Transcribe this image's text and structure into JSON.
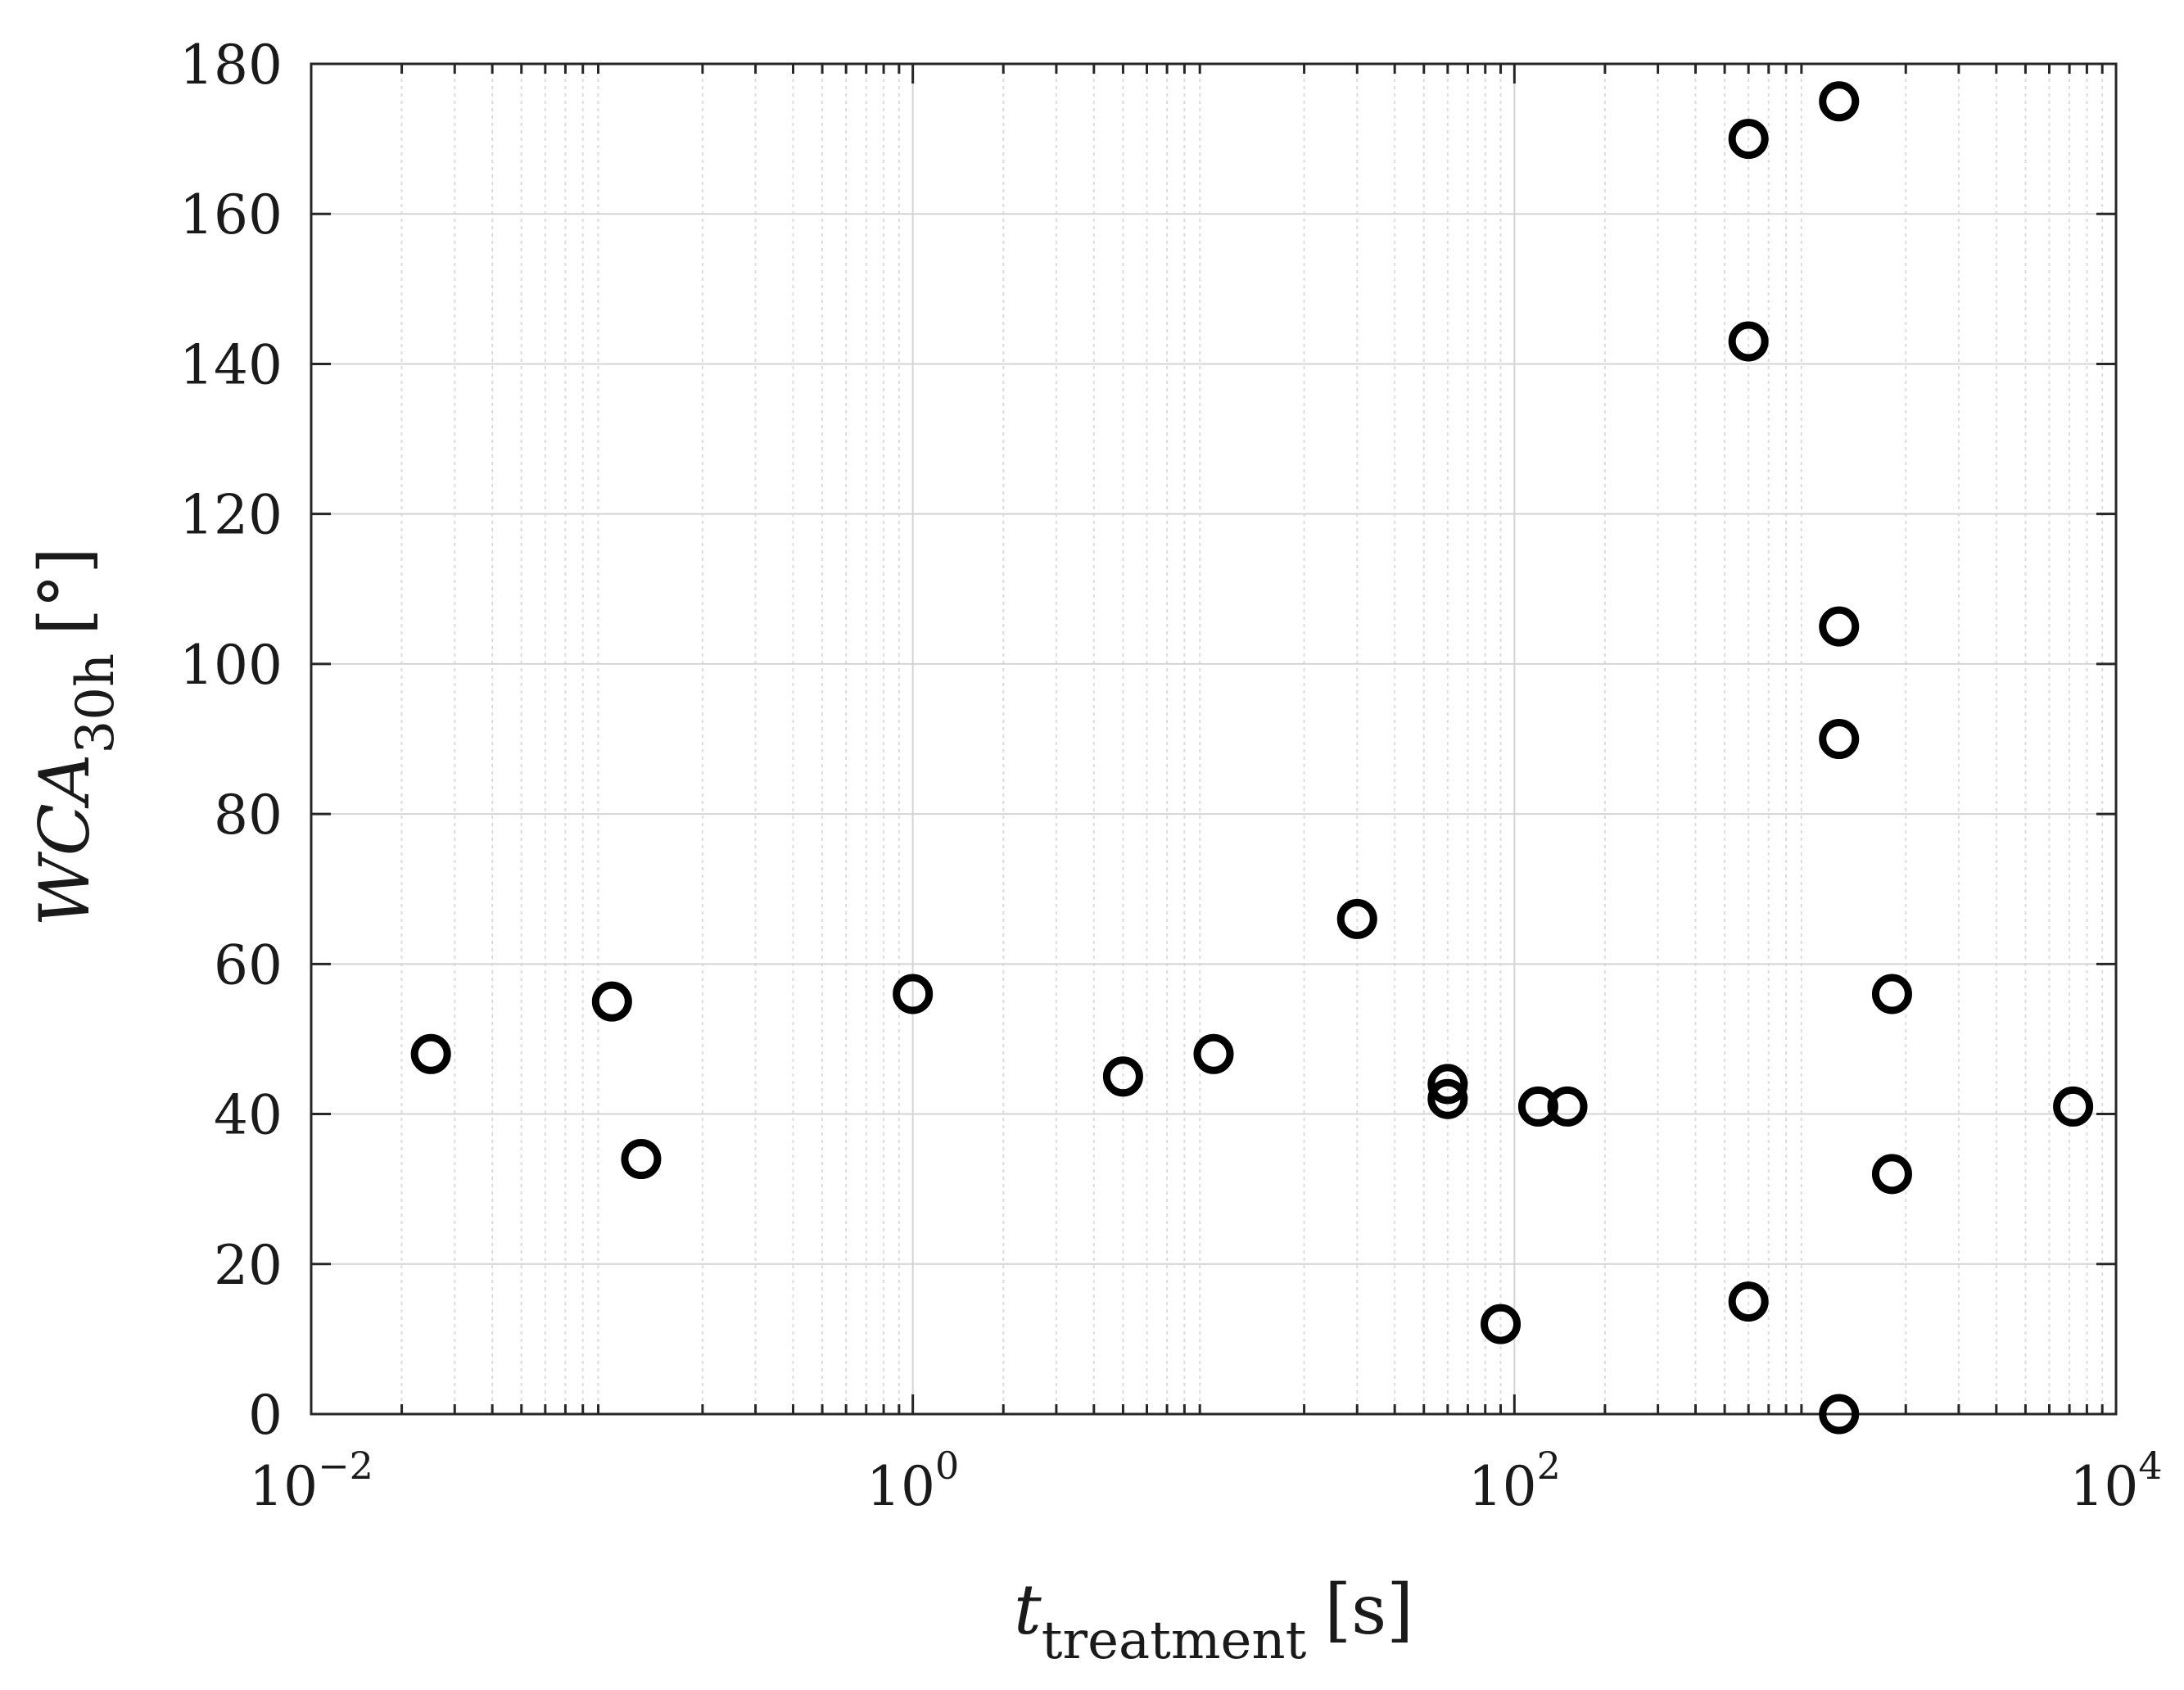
{
  "chart_data": {
    "type": "scatter",
    "x_scale": "log",
    "y_scale": "linear",
    "xlim": [
      0.01,
      10000
    ],
    "ylim": [
      0,
      180
    ],
    "x_ticks": [
      0.01,
      1,
      100,
      10000
    ],
    "x_tick_labels": [
      {
        "base": "10",
        "exp": "−2"
      },
      {
        "base": "10",
        "exp": "0"
      },
      {
        "base": "10",
        "exp": "2"
      },
      {
        "base": "10",
        "exp": "4"
      }
    ],
    "y_ticks": [
      0,
      20,
      40,
      60,
      80,
      100,
      120,
      140,
      160,
      180
    ],
    "y_tick_labels": [
      "0",
      "20",
      "40",
      "60",
      "80",
      "100",
      "120",
      "140",
      "160",
      "180"
    ],
    "xlabel": {
      "main": "t",
      "sub": "treatment",
      "unit": "[s]"
    },
    "ylabel": {
      "main": "WCA",
      "sub": "30h",
      "unit": "[°]"
    },
    "grid": true,
    "marker": "open-circle",
    "marker_color": "#000000",
    "points": [
      {
        "x": 0.025,
        "y": 48
      },
      {
        "x": 0.1,
        "y": 55
      },
      {
        "x": 0.125,
        "y": 34
      },
      {
        "x": 1,
        "y": 56
      },
      {
        "x": 5,
        "y": 45
      },
      {
        "x": 10,
        "y": 48
      },
      {
        "x": 30,
        "y": 66
      },
      {
        "x": 60,
        "y": 44
      },
      {
        "x": 60,
        "y": 42
      },
      {
        "x": 90,
        "y": 12
      },
      {
        "x": 120,
        "y": 41
      },
      {
        "x": 150,
        "y": 41
      },
      {
        "x": 600,
        "y": 170
      },
      {
        "x": 600,
        "y": 143
      },
      {
        "x": 600,
        "y": 15
      },
      {
        "x": 1200,
        "y": 175
      },
      {
        "x": 1200,
        "y": 105
      },
      {
        "x": 1200,
        "y": 90
      },
      {
        "x": 1200,
        "y": 0
      },
      {
        "x": 1800,
        "y": 56
      },
      {
        "x": 1800,
        "y": 32
      },
      {
        "x": 7200,
        "y": 41
      }
    ]
  }
}
